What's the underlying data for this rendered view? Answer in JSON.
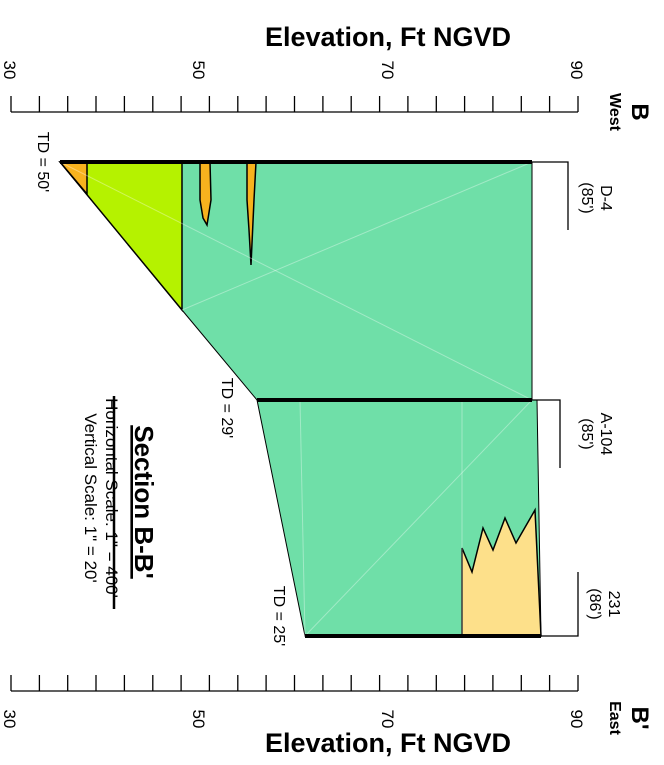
{
  "axis": {
    "title": "Elevation, Ft NGVD",
    "ticks": [
      "30",
      "50",
      "70",
      "90"
    ]
  },
  "section": {
    "start_label": "B",
    "start_direction": "West",
    "end_label": "B'",
    "end_direction": "East",
    "title": "Section B-B'",
    "horizontal_scale": "Horizontal Scale: 1\" = 400'",
    "vertical_scale": "Vertical Scale: 1\" = 20'"
  },
  "wells": [
    {
      "id": "D-4",
      "elevation": "(85')",
      "total_depth": "TD = 50'"
    },
    {
      "id": "A-104",
      "elevation": "(85')",
      "total_depth": "TD = 29'"
    },
    {
      "id": "231",
      "elevation": "(86')",
      "total_depth": "TD = 25'"
    }
  ],
  "colors": {
    "main_unit": "#6fdfa8",
    "lower_unit": "#b5f200",
    "lenses": "#f7b21e",
    "upper_lens": "#fde08a",
    "outline": "#000000"
  }
}
